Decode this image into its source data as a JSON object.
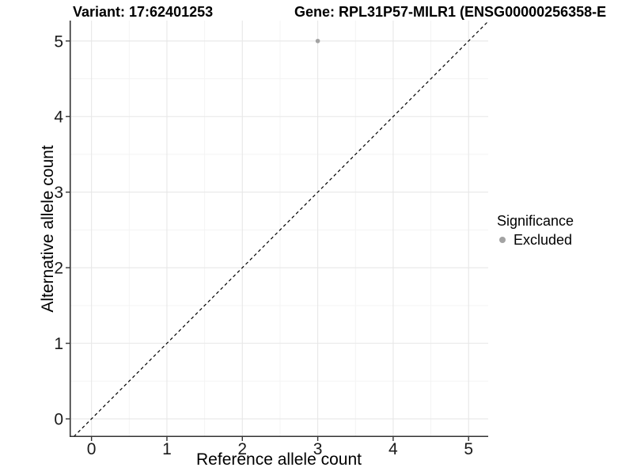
{
  "titles": {
    "variant": "Variant: 17:62401253",
    "gene": "Gene: RPL31P57-MILR1 (ENSG00000256358-E"
  },
  "axes": {
    "x": {
      "label": "Reference allele count",
      "tick_labels": [
        "0",
        "1",
        "2",
        "3",
        "4",
        "5"
      ]
    },
    "y": {
      "label": "Alternative allele count",
      "tick_labels": [
        "0",
        "1",
        "2",
        "3",
        "4",
        "5"
      ]
    }
  },
  "legend": {
    "title": "Significance",
    "items": [
      {
        "label": "Excluded",
        "color": "#a3a3a3"
      }
    ]
  },
  "chart_data": {
    "type": "scatter",
    "title": "Variant: 17:62401253",
    "secondary_title": "Gene: RPL31P57-MILR1 (ENSG00000256358-E",
    "xlabel": "Reference allele count",
    "ylabel": "Alternative allele count",
    "xlim": [
      -0.29,
      5.26
    ],
    "ylim": [
      -0.24,
      5.27
    ],
    "x_major_ticks": [
      0,
      1,
      2,
      3,
      4,
      5
    ],
    "y_major_ticks": [
      0,
      1,
      2,
      3,
      4,
      5
    ],
    "x_minor_ticks": [
      0.5,
      1.5,
      2.5,
      3.5,
      4.5
    ],
    "y_minor_ticks": [
      0.5,
      1.5,
      2.5,
      3.5,
      4.5
    ],
    "grid": true,
    "legend_position": "right",
    "series": [
      {
        "name": "Excluded",
        "color": "#a3a3a3",
        "points": [
          {
            "x": 3,
            "y": 5
          }
        ]
      }
    ],
    "reference_line": {
      "kind": "identity",
      "slope": 1,
      "intercept": 0,
      "style": "dashed",
      "color": "#000000"
    }
  },
  "style": {
    "grid_major_color": "#e7e7e7",
    "grid_minor_color": "#f3f3f3",
    "axis_line_color": "#333333",
    "tick_color": "#333333",
    "tick_label_color": "#1a1a1a",
    "point_color": "#a9a9a9"
  }
}
